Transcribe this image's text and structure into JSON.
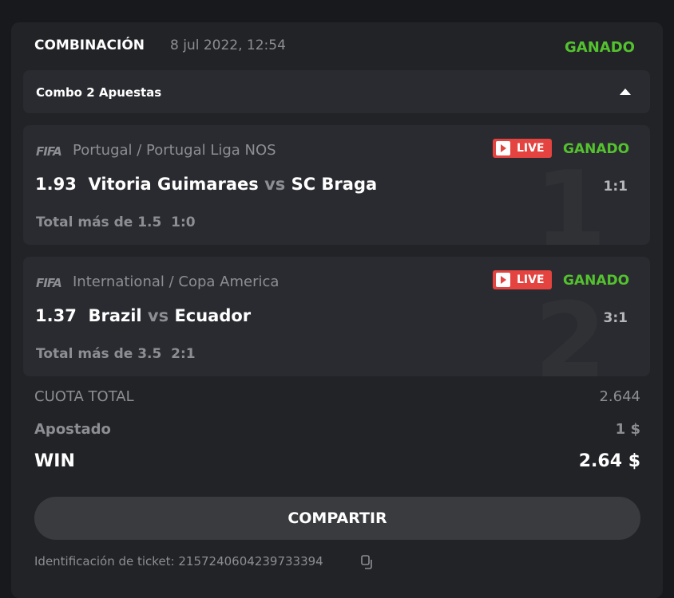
{
  "header": {
    "title": "COMBINACIÓN",
    "date": "8 jul 2022, 12:54",
    "status": "GANADO"
  },
  "combo": {
    "label": "Combo 2 Apuestas"
  },
  "bets": [
    {
      "fifa": "FIFA",
      "league": "Portugal / Portugal Liga NOS",
      "live": "LIVE",
      "status": "GANADO",
      "odds": "1.93",
      "home": "Vitoria Guimaraes",
      "vs": "vs",
      "away": "SC Braga",
      "score": "1:1",
      "pick": "Total más de 1.5  1:0",
      "index": "1"
    },
    {
      "fifa": "FIFA",
      "league": "International / Copa America",
      "live": "LIVE",
      "status": "GANADO",
      "odds": "1.37",
      "home": "Brazil",
      "vs": "vs",
      "away": "Ecuador",
      "score": "3:1",
      "pick": "Total más de 3.5  2:1",
      "index": "2"
    }
  ],
  "summary": {
    "cuota_label": "CUOTA TOTAL",
    "cuota": "2.644",
    "apostado_label": "Apostado",
    "apostado": "1 $",
    "win_label": "WIN",
    "win": "2.64 $"
  },
  "share_label": "COMPARTIR",
  "ticket": "Identificación de ticket: 2157240604239733394",
  "colors": {
    "won": "#54c22f",
    "live": "#e4433f"
  }
}
